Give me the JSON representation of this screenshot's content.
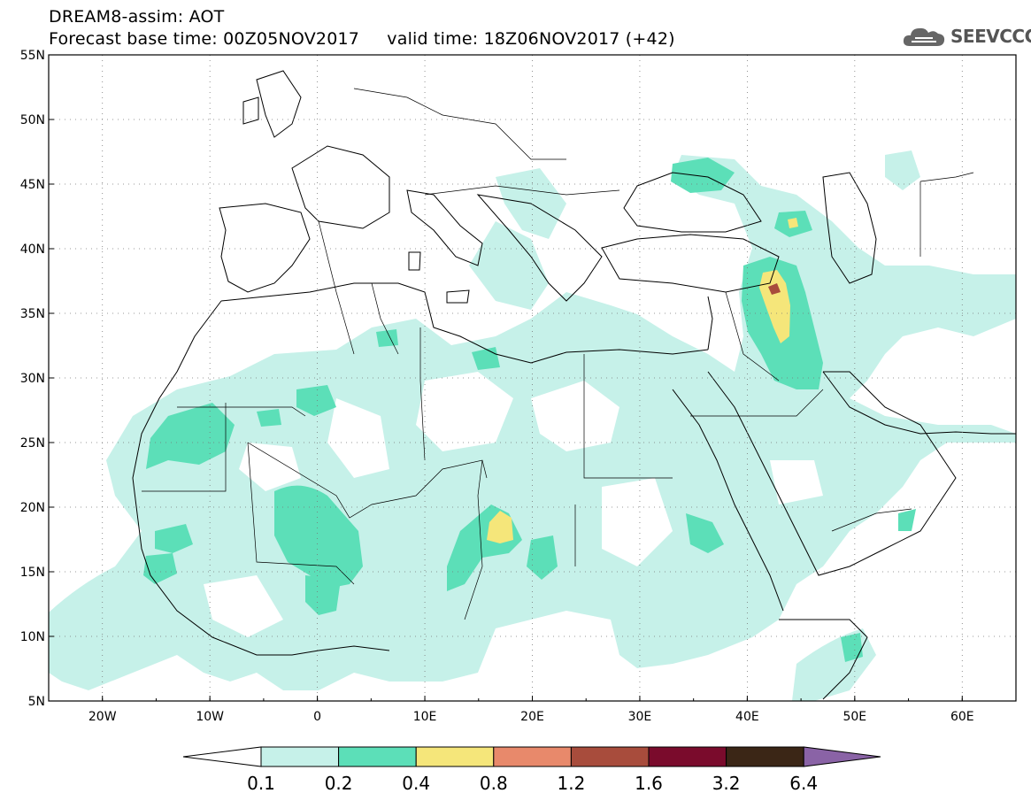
{
  "header": {
    "line1": "DREAM8-assim: AOT",
    "line2": "Forecast base time: 00Z05NOV2017     valid time: 18Z06NOV2017 (+42)"
  },
  "logo": {
    "text": "SEEVCCC",
    "icon": "cloud-icon"
  },
  "map": {
    "lat_range": [
      5,
      55
    ],
    "lon_range": [
      -25,
      65
    ],
    "lat_labels": [
      "55N",
      "50N",
      "45N",
      "40N",
      "35N",
      "30N",
      "25N",
      "20N",
      "15N",
      "10N",
      "5N"
    ],
    "lon_labels": [
      "20W",
      "10W",
      "0",
      "10E",
      "20E",
      "30E",
      "40E",
      "50E",
      "60E"
    ],
    "gridlines": "dotted"
  },
  "legend": {
    "labels": [
      "0.1",
      "0.2",
      "0.4",
      "0.8",
      "1.2",
      "1.6",
      "3.2",
      "6.4"
    ],
    "colors": [
      "#ffffff",
      "#c6f1e9",
      "#5cdfb8",
      "#f5e67a",
      "#e8896b",
      "#a84c3c",
      "#7a0b2c",
      "#3b2616",
      "#8a63a6"
    ]
  }
}
